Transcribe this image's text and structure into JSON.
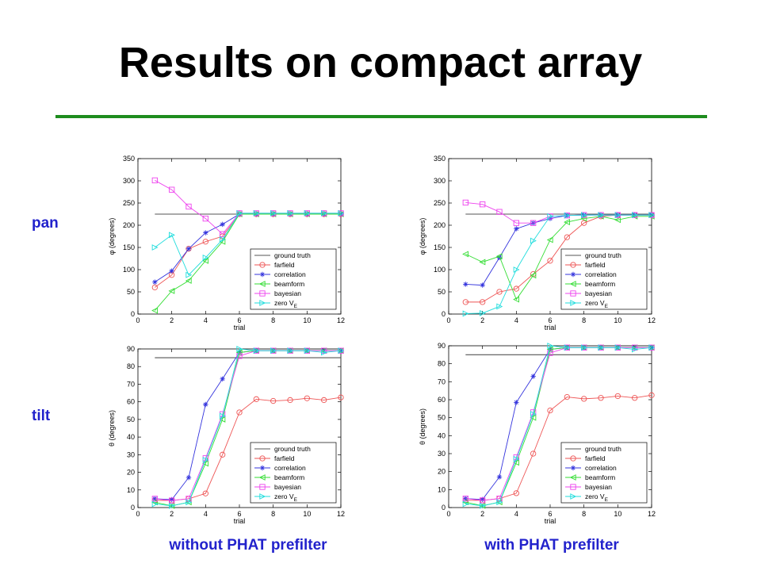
{
  "title": "Results on compact array",
  "row_labels": [
    "pan",
    "tilt"
  ],
  "column_labels": [
    "without PHAT prefilter",
    "with PHAT prefilter"
  ],
  "legend": {
    "entries": [
      "ground truth",
      "farfield",
      "correlation",
      "beamform",
      "bayesian",
      "zero V"
    ],
    "zero_subscript": "E"
  },
  "colors": {
    "title_rule": "#1e8c1e",
    "labels": "#2222cc",
    "ground truth": "#555555",
    "farfield": "#ee5555",
    "correlation": "#3333dd",
    "beamform": "#33dd33",
    "bayesian": "#ee44ee",
    "zero V": "#22dddd"
  },
  "chart_data": [
    {
      "type": "line",
      "xlabel": "trial",
      "ylabel": "φ (degrees)",
      "xlim": [
        0,
        12
      ],
      "ylim": [
        0,
        350
      ],
      "xticks": [
        0,
        2,
        4,
        6,
        8,
        10,
        12
      ],
      "yticks": [
        0,
        50,
        100,
        150,
        200,
        250,
        300,
        350
      ],
      "x": [
        1,
        2,
        3,
        4,
        5,
        6,
        7,
        8,
        9,
        10,
        11,
        12
      ],
      "ground_truth": 225,
      "legend_position": "lower-right",
      "series": [
        {
          "name": "farfield",
          "marker": "circle",
          "values": [
            60,
            88,
            147,
            163,
            175,
            225,
            225,
            225,
            225,
            225,
            225,
            225
          ]
        },
        {
          "name": "correlation",
          "marker": "star",
          "values": [
            72,
            97,
            147,
            183,
            202,
            225,
            225,
            225,
            225,
            225,
            225,
            225
          ]
        },
        {
          "name": "beamform",
          "marker": "triangle-left",
          "values": [
            8,
            52,
            75,
            120,
            163,
            225,
            225,
            225,
            225,
            225,
            225,
            225
          ]
        },
        {
          "name": "bayesian",
          "marker": "square",
          "values": [
            301,
            280,
            242,
            215,
            180,
            227,
            227,
            227,
            227,
            227,
            227,
            227
          ]
        },
        {
          "name": "zero V",
          "marker": "triangle-right",
          "values": [
            150,
            178,
            88,
            127,
            168,
            227,
            227,
            227,
            227,
            227,
            227,
            227
          ]
        }
      ]
    },
    {
      "type": "line",
      "xlabel": "trial",
      "ylabel": "φ (degrees)",
      "xlim": [
        0,
        12
      ],
      "ylim": [
        0,
        350
      ],
      "xticks": [
        0,
        2,
        4,
        6,
        8,
        10,
        12
      ],
      "yticks": [
        0,
        50,
        100,
        150,
        200,
        250,
        300,
        350
      ],
      "x": [
        1,
        2,
        3,
        4,
        5,
        6,
        7,
        8,
        9,
        10,
        11,
        12
      ],
      "ground_truth": 225,
      "legend_position": "lower-right",
      "series": [
        {
          "name": "farfield",
          "marker": "circle",
          "values": [
            27,
            27,
            50,
            57,
            90,
            120,
            173,
            205,
            220,
            223,
            223,
            223
          ]
        },
        {
          "name": "correlation",
          "marker": "star",
          "values": [
            67,
            65,
            127,
            192,
            205,
            215,
            222,
            223,
            223,
            223,
            223,
            223
          ]
        },
        {
          "name": "beamform",
          "marker": "triangle-left",
          "values": [
            135,
            117,
            130,
            33,
            87,
            167,
            207,
            215,
            220,
            212,
            220,
            220
          ]
        },
        {
          "name": "bayesian",
          "marker": "square",
          "values": [
            251,
            247,
            230,
            205,
            205,
            220,
            222,
            223,
            223,
            223,
            223,
            223
          ]
        },
        {
          "name": "zero V",
          "marker": "triangle-right",
          "values": [
            1,
            2,
            17,
            100,
            165,
            220,
            222,
            223,
            223,
            223,
            223,
            223
          ]
        }
      ]
    },
    {
      "type": "line",
      "xlabel": "trial",
      "ylabel": "θ (degrees)",
      "xlim": [
        0,
        12
      ],
      "ylim": [
        0,
        90
      ],
      "xticks": [
        0,
        2,
        4,
        6,
        8,
        10,
        12
      ],
      "yticks": [
        0,
        10,
        20,
        30,
        40,
        50,
        60,
        70,
        80,
        90
      ],
      "x": [
        1,
        2,
        3,
        4,
        5,
        6,
        7,
        8,
        9,
        10,
        11,
        12
      ],
      "ground_truth": 85,
      "legend_position": "lower-right",
      "series": [
        {
          "name": "farfield",
          "marker": "circle",
          "values": [
            4,
            4,
            5,
            8,
            30,
            54,
            61.5,
            60.5,
            61,
            62,
            61,
            62.5
          ]
        },
        {
          "name": "correlation",
          "marker": "star",
          "values": [
            5,
            4.5,
            17,
            58.5,
            73,
            88,
            89,
            89,
            89,
            89,
            89,
            89
          ]
        },
        {
          "name": "beamform",
          "marker": "triangle-left",
          "values": [
            3,
            1,
            3,
            25,
            50,
            88,
            89,
            89,
            89,
            89,
            89,
            89
          ]
        },
        {
          "name": "bayesian",
          "marker": "square",
          "values": [
            5,
            4,
            5,
            28,
            53,
            86,
            89,
            89,
            89,
            89,
            89,
            89
          ]
        },
        {
          "name": "zero V",
          "marker": "triangle-right",
          "values": [
            2,
            1,
            3,
            27,
            52,
            90,
            89,
            89,
            89,
            89,
            88,
            89
          ]
        }
      ]
    },
    {
      "type": "line",
      "xlabel": "trial",
      "ylabel": "θ (degrees)",
      "xlim": [
        0,
        12
      ],
      "ylim": [
        0,
        90
      ],
      "xticks": [
        0,
        2,
        4,
        6,
        8,
        10,
        12
      ],
      "yticks": [
        0,
        10,
        20,
        30,
        40,
        50,
        60,
        70,
        80,
        90
      ],
      "x": [
        1,
        2,
        3,
        4,
        5,
        6,
        7,
        8,
        9,
        10,
        11,
        12
      ],
      "ground_truth": 85,
      "legend_position": "lower-right",
      "series": [
        {
          "name": "farfield",
          "marker": "circle",
          "values": [
            4,
            4,
            5,
            8,
            30,
            54,
            61.5,
            60.5,
            61,
            62,
            61,
            62.5
          ]
        },
        {
          "name": "correlation",
          "marker": "star",
          "values": [
            5,
            4.5,
            17,
            58.5,
            73,
            88,
            89,
            89,
            89,
            89,
            89,
            89
          ]
        },
        {
          "name": "beamform",
          "marker": "triangle-left",
          "values": [
            3,
            1,
            3,
            25,
            50,
            88,
            89,
            89,
            89,
            89,
            89,
            89
          ]
        },
        {
          "name": "bayesian",
          "marker": "square",
          "values": [
            5,
            4,
            5,
            28,
            53,
            86,
            89,
            89,
            89,
            89,
            89,
            89
          ]
        },
        {
          "name": "zero V",
          "marker": "triangle-right",
          "values": [
            2,
            1,
            3,
            27,
            52,
            90,
            89,
            89,
            89,
            89,
            88,
            89
          ]
        }
      ]
    }
  ]
}
